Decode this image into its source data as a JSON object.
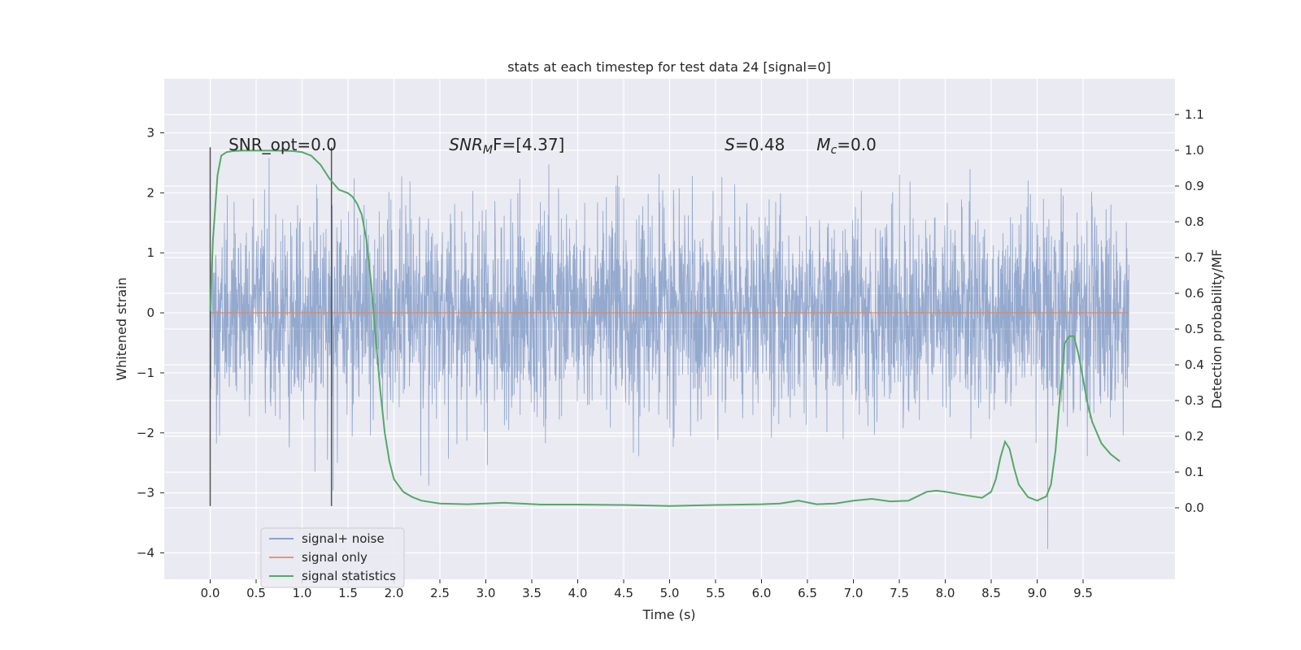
{
  "chart_data": {
    "type": "line",
    "title": "stats at each timestep for test data 24 [signal=0]",
    "xlabel": "Time (s)",
    "ylabel": "Whitened strain",
    "ylabel_right": "Detection probability/MF",
    "xlim": [
      -0.5,
      10.5
    ],
    "ylim": [
      -4.44,
      3.9
    ],
    "ylim_right": [
      -0.2,
      1.2
    ],
    "x_ticks": [
      "0.0",
      "0.5",
      "1.0",
      "1.5",
      "2.0",
      "2.5",
      "3.0",
      "3.5",
      "4.0",
      "4.5",
      "5.0",
      "5.5",
      "6.0",
      "6.5",
      "7.0",
      "7.5",
      "8.0",
      "8.5",
      "9.0",
      "9.5"
    ],
    "x_tick_values": [
      0,
      0.5,
      1,
      1.5,
      2,
      2.5,
      3,
      3.5,
      4,
      4.5,
      5,
      5.5,
      6,
      6.5,
      7,
      7.5,
      8,
      8.5,
      9,
      9.5
    ],
    "y_ticks": [
      "−4",
      "−3",
      "−2",
      "−1",
      "0",
      "1",
      "2",
      "3"
    ],
    "y_tick_values": [
      -4,
      -3,
      -2,
      -1,
      0,
      1,
      2,
      3
    ],
    "y_ticks_right": [
      "0.0",
      "0.1",
      "0.2",
      "0.3",
      "0.4",
      "0.5",
      "0.6",
      "0.7",
      "0.8",
      "0.9",
      "1.0",
      "1.1"
    ],
    "y_tick_values_right": [
      0,
      0.1,
      0.2,
      0.3,
      0.4,
      0.5,
      0.6,
      0.7,
      0.8,
      0.9,
      1.0,
      1.1
    ],
    "grid": true,
    "legend_position": "lower-left",
    "annotations": [
      {
        "text": "SNR_opt=0.0",
        "x": 0.2,
        "y": 2.8
      },
      {
        "text": "SNR",
        "sub": "M",
        "rest": "F=[4.37]",
        "x": 2.6,
        "y": 2.8,
        "italic_main": true
      },
      {
        "text": "S",
        "rest": "=0.48",
        "x": 5.6,
        "y": 2.8,
        "italic_main": true
      },
      {
        "text": "M",
        "sub": "c",
        "rest": "=0.0",
        "x": 6.6,
        "y": 2.8,
        "italic_main": true
      }
    ],
    "vlines": [
      {
        "x": 0.0,
        "ymin": -3.22,
        "ymax": 2.76
      },
      {
        "x": 1.32,
        "ymin": -3.22,
        "ymax": 2.76
      }
    ],
    "series": [
      {
        "name": "signal+ noise",
        "color": "#4c72b0",
        "axis": "left",
        "noise": {
          "t_start": 0.0,
          "t_end": 10.0,
          "sigma": 0.82
        }
      },
      {
        "name": "signal only",
        "color": "#dd8452",
        "axis": "left",
        "x": [
          0,
          10
        ],
        "y": [
          0,
          0
        ]
      },
      {
        "name": "signal statistics",
        "color": "#55a868",
        "axis": "right",
        "x": [
          0.0,
          0.03,
          0.08,
          0.12,
          0.18,
          0.25,
          0.35,
          0.5,
          0.7,
          0.9,
          1.0,
          1.1,
          1.2,
          1.3,
          1.4,
          1.5,
          1.55,
          1.6,
          1.65,
          1.7,
          1.75,
          1.8,
          1.85,
          1.9,
          1.95,
          2.0,
          2.1,
          2.2,
          2.3,
          2.5,
          2.8,
          3.2,
          3.6,
          4.0,
          4.5,
          5.0,
          5.5,
          6.0,
          6.2,
          6.4,
          6.6,
          6.8,
          7.0,
          7.2,
          7.4,
          7.6,
          7.8,
          7.9,
          8.0,
          8.2,
          8.4,
          8.5,
          8.55,
          8.6,
          8.65,
          8.7,
          8.75,
          8.8,
          8.9,
          9.0,
          9.1,
          9.15,
          9.2,
          9.25,
          9.3,
          9.35,
          9.4,
          9.45,
          9.5,
          9.55,
          9.6,
          9.7,
          9.8,
          9.9
        ],
        "y": [
          0.55,
          0.75,
          0.93,
          0.985,
          0.995,
          0.998,
          0.999,
          0.999,
          0.999,
          0.998,
          0.995,
          0.985,
          0.96,
          0.92,
          0.89,
          0.88,
          0.87,
          0.85,
          0.82,
          0.75,
          0.63,
          0.48,
          0.33,
          0.21,
          0.13,
          0.08,
          0.045,
          0.03,
          0.02,
          0.012,
          0.01,
          0.014,
          0.009,
          0.009,
          0.008,
          0.005,
          0.008,
          0.01,
          0.012,
          0.02,
          0.01,
          0.012,
          0.02,
          0.025,
          0.018,
          0.02,
          0.045,
          0.048,
          0.045,
          0.036,
          0.028,
          0.045,
          0.08,
          0.14,
          0.185,
          0.165,
          0.11,
          0.065,
          0.03,
          0.02,
          0.032,
          0.065,
          0.16,
          0.32,
          0.46,
          0.48,
          0.48,
          0.43,
          0.36,
          0.29,
          0.24,
          0.18,
          0.15,
          0.13
        ]
      }
    ]
  }
}
